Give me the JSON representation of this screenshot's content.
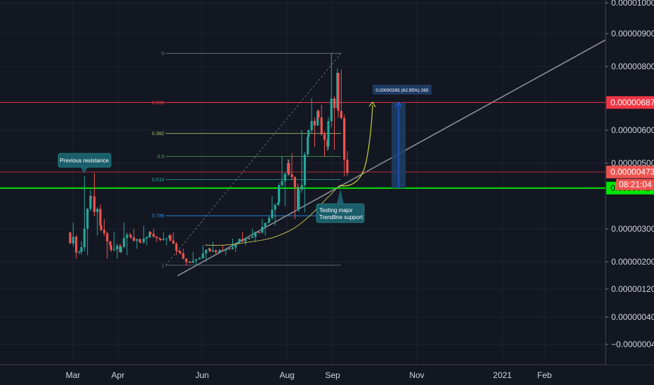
{
  "chart_data": {
    "type": "candlestick",
    "price_axis": {
      "ticks": [
        "0.00001000",
        "0.00000900",
        "0.00000800",
        "0.00000600",
        "0.00000500",
        "0.00000300",
        "0.00000200",
        "0.00000120",
        "0.00000040",
        "−0.00000040"
      ],
      "tick_values": [
        1e-05,
        9e-06,
        8e-06,
        6e-06,
        5e-06,
        3e-06,
        2e-06,
        1.2e-06,
        4e-07,
        -4e-07
      ],
      "scale": "log"
    },
    "time_axis": {
      "ticks": [
        "Mar",
        "Apr",
        "Jun",
        "Aug",
        "Sep",
        "Nov",
        "2021",
        "Feb"
      ],
      "tick_dates": [
        "2020-03-01",
        "2020-04-01",
        "2020-06-01",
        "2020-08-01",
        "2020-09-01",
        "2020-11-01",
        "2021-01-01",
        "2021-02-01"
      ]
    },
    "candles_weekly_approx": [
      {
        "date": "2020-02-28",
        "o": 2.9e-06,
        "h": 3.2e-06,
        "l": 2.1e-06,
        "c": 2.3e-06
      },
      {
        "date": "2020-03-07",
        "o": 2.3e-06,
        "h": 4.6e-06,
        "l": 2.2e-06,
        "c": 4e-06
      },
      {
        "date": "2020-03-14",
        "o": 4e-06,
        "h": 4.7e-06,
        "l": 2.8e-06,
        "c": 3.1e-06
      },
      {
        "date": "2020-03-21",
        "o": 3.1e-06,
        "h": 3.3e-06,
        "l": 2.1e-06,
        "c": 2.5e-06
      },
      {
        "date": "2020-03-28",
        "o": 2.5e-06,
        "h": 2.9e-06,
        "l": 2.1e-06,
        "c": 2.3e-06
      },
      {
        "date": "2020-04-04",
        "o": 2.3e-06,
        "h": 3.2e-06,
        "l": 2.2e-06,
        "c": 2.8e-06
      },
      {
        "date": "2020-04-11",
        "o": 2.8e-06,
        "h": 3e-06,
        "l": 2.4e-06,
        "c": 2.6e-06
      },
      {
        "date": "2020-04-18",
        "o": 2.6e-06,
        "h": 3.1e-06,
        "l": 2.5e-06,
        "c": 2.9e-06
      },
      {
        "date": "2020-04-25",
        "o": 2.9e-06,
        "h": 3e-06,
        "l": 2.6e-06,
        "c": 2.7e-06
      },
      {
        "date": "2020-05-02",
        "o": 2.7e-06,
        "h": 2.9e-06,
        "l": 2.5e-06,
        "c": 2.8e-06
      },
      {
        "date": "2020-05-09",
        "o": 2.8e-06,
        "h": 2.9e-06,
        "l": 2.2e-06,
        "c": 2.3e-06
      },
      {
        "date": "2020-05-16",
        "o": 2.3e-06,
        "h": 2.4e-06,
        "l": 1.9e-06,
        "c": 2e-06
      },
      {
        "date": "2020-05-23",
        "o": 2e-06,
        "h": 2.3e-06,
        "l": 1.9e-06,
        "c": 2.1e-06
      },
      {
        "date": "2020-05-30",
        "o": 2.1e-06,
        "h": 2.5e-06,
        "l": 2e-06,
        "c": 2.4e-06
      },
      {
        "date": "2020-06-06",
        "o": 2.4e-06,
        "h": 2.6e-06,
        "l": 2.2e-06,
        "c": 2.3e-06
      },
      {
        "date": "2020-06-13",
        "o": 2.3e-06,
        "h": 2.5e-06,
        "l": 2.2e-06,
        "c": 2.4e-06
      },
      {
        "date": "2020-06-20",
        "o": 2.4e-06,
        "h": 2.7e-06,
        "l": 2.3e-06,
        "c": 2.6e-06
      },
      {
        "date": "2020-06-27",
        "o": 2.6e-06,
        "h": 2.9e-06,
        "l": 2.5e-06,
        "c": 2.7e-06
      },
      {
        "date": "2020-07-04",
        "o": 2.7e-06,
        "h": 3e-06,
        "l": 2.6e-06,
        "c": 2.9e-06
      },
      {
        "date": "2020-07-11",
        "o": 2.9e-06,
        "h": 3.3e-06,
        "l": 2.8e-06,
        "c": 3.2e-06
      },
      {
        "date": "2020-07-18",
        "o": 3.2e-06,
        "h": 4e-06,
        "l": 3.1e-06,
        "c": 3.8e-06
      },
      {
        "date": "2020-07-25",
        "o": 3.8e-06,
        "h": 5.2e-06,
        "l": 3.7e-06,
        "c": 5e-06
      },
      {
        "date": "2020-08-01",
        "o": 5e-06,
        "h": 5.3e-06,
        "l": 3.3e-06,
        "c": 3.6e-06
      },
      {
        "date": "2020-08-08",
        "o": 3.6e-06,
        "h": 6e-06,
        "l": 3.5e-06,
        "c": 5.8e-06
      },
      {
        "date": "2020-08-15",
        "o": 5.8e-06,
        "h": 7e-06,
        "l": 5.5e-06,
        "c": 6.6e-06
      },
      {
        "date": "2020-08-22",
        "o": 6.6e-06,
        "h": 6.8e-06,
        "l": 5.2e-06,
        "c": 5.5e-06
      },
      {
        "date": "2020-08-29",
        "o": 5.5e-06,
        "h": 8.4e-06,
        "l": 5.4e-06,
        "c": 7.8e-06
      },
      {
        "date": "2020-09-05",
        "o": 7.8e-06,
        "h": 7.9e-06,
        "l": 4.6e-06,
        "c": 4.7e-06
      }
    ],
    "horizontal_levels": [
      {
        "value": 6.87e-06,
        "label": "0.00000687",
        "color": "#f23645"
      },
      {
        "value": 4.73e-06,
        "label": "0.00000473",
        "color": "#f23645"
      },
      {
        "value": 4.24e-06,
        "label": "0.00000424",
        "color": "#00e600"
      }
    ],
    "countdown": "08:21:04",
    "fib_retracement": {
      "levels": [
        {
          "ratio": "0",
          "value": 8.4e-06,
          "color": "#787b86"
        },
        {
          "ratio": "0.236",
          "value": 6.87e-06,
          "color": "#f23645"
        },
        {
          "ratio": "0.382",
          "value": 5.9e-06,
          "color": "#a8c36a"
        },
        {
          "ratio": "0.5",
          "value": 5.2e-06,
          "color": "#4caf50"
        },
        {
          "ratio": "0.618",
          "value": 4.5e-06,
          "color": "#26a69a"
        },
        {
          "ratio": "0.786",
          "value": 3.4e-06,
          "color": "#2196f3"
        },
        {
          "ratio": "1",
          "value": 1.9e-06,
          "color": "#787b86"
        }
      ]
    },
    "measure_label": "0.00000265 (62.95%) 265",
    "annotations": [
      {
        "text": "Previous resistance"
      },
      {
        "text_lines": [
          "Testing major",
          "Trendline support"
        ]
      }
    ],
    "colors": {
      "background": "#131722",
      "up": "#26a69a",
      "down": "#ef5350",
      "grid": "#1e222d",
      "axis_text": "#d1d4dc",
      "callout_bg": "#1b5e6b",
      "support_green": "#00e600",
      "trendline": "#8a8d96",
      "projection": "#c9d430",
      "measure_fill": "#1e3f66"
    }
  }
}
